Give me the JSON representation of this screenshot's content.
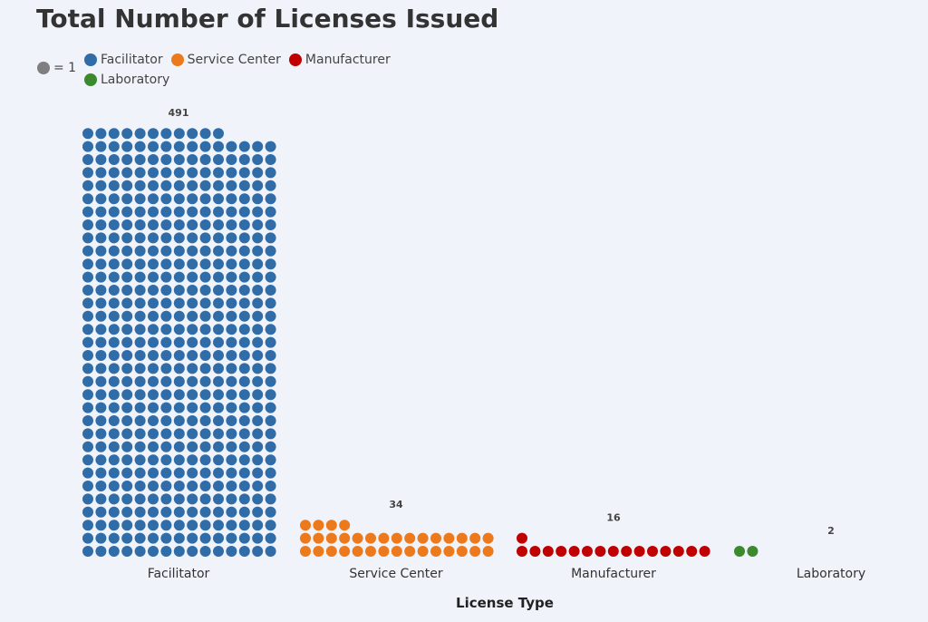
{
  "chart_data": {
    "type": "bar",
    "subtype": "unit-dot (waffle column)",
    "title": "Total Number of Licenses Issued",
    "xlabel": "License Type",
    "ylabel": "",
    "unit_legend": {
      "label": "= 1",
      "color": "#7f7f7f"
    },
    "categories": [
      "Facilitator",
      "Service Center",
      "Manufacturer",
      "Laboratory"
    ],
    "values": [
      491,
      34,
      16,
      2
    ],
    "value_labels": [
      "491",
      "34",
      "16",
      "2"
    ],
    "colors": [
      "#2f6ca8",
      "#ec7a1c",
      "#c00000",
      "#3b8a2e"
    ],
    "legend": {
      "placement": "top-left",
      "entries": [
        "Facilitator",
        "Service Center",
        "Manufacturer",
        "Laboratory"
      ]
    },
    "dots_per_row": 15,
    "grid": false
  }
}
